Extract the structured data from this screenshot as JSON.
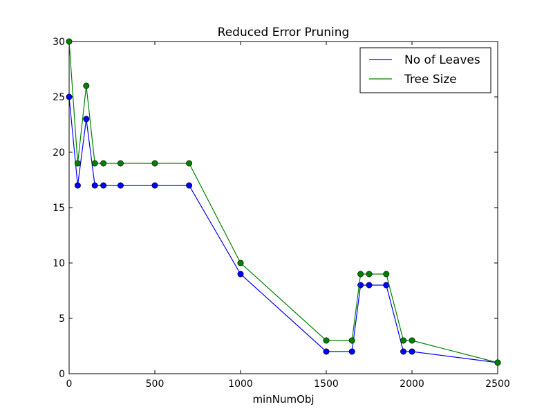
{
  "chart_data": {
    "type": "line",
    "title": "Reduced Error Pruning",
    "xlabel": "minNumObj",
    "ylabel": "",
    "xlim": [
      0,
      2500
    ],
    "ylim": [
      0,
      30
    ],
    "xticks": [
      0,
      500,
      1000,
      1500,
      2000,
      2500
    ],
    "yticks": [
      0,
      5,
      10,
      15,
      20,
      25,
      30
    ],
    "legend_position": "top-right",
    "grid": false,
    "x": [
      0,
      50,
      100,
      150,
      200,
      300,
      500,
      700,
      1000,
      1500,
      1650,
      1700,
      1750,
      1850,
      1950,
      2000,
      2500
    ],
    "series": [
      {
        "name": "No of Leaves",
        "color": "#0000ff",
        "values": [
          25,
          17,
          23,
          17,
          17,
          17,
          17,
          17,
          9,
          2,
          2,
          8,
          8,
          8,
          2,
          2,
          1
        ]
      },
      {
        "name": "Tree Size",
        "color": "#008000",
        "values": [
          30,
          19,
          26,
          19,
          19,
          19,
          19,
          19,
          10,
          3,
          3,
          9,
          9,
          9,
          3,
          3,
          1
        ]
      }
    ]
  }
}
